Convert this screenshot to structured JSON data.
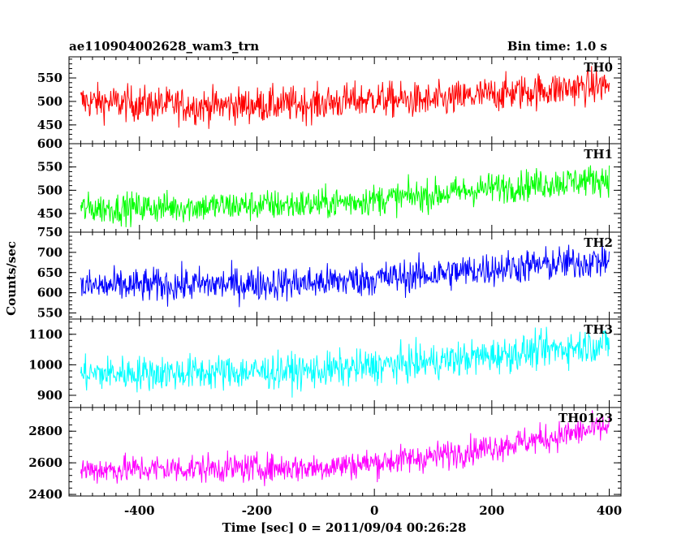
{
  "header": {
    "title": "ae110904002628_wam3_trn",
    "bin_time": "Bin time: 1.0 s"
  },
  "chart_data": {
    "type": "line",
    "title": "ae110904002628_wam3_trn",
    "xlabel": "Time [sec] 0 = 2011/09/04 00:26:28",
    "ylabel": "Counts/sec",
    "xlim": [
      -520,
      420
    ],
    "data_range": [
      -500,
      400
    ],
    "x_ticks": [
      -400,
      -200,
      0,
      200,
      400
    ],
    "grid": false,
    "panels": [
      {
        "name": "TH0",
        "color": "#ff0000",
        "ylim": [
          410,
          595
        ],
        "yticks": [
          450,
          500,
          550
        ],
        "trend": [
          [
            -500,
            500
          ],
          [
            -300,
            490
          ],
          [
            -100,
            495
          ],
          [
            0,
            505
          ],
          [
            100,
            500
          ],
          [
            200,
            515
          ],
          [
            300,
            525
          ],
          [
            400,
            535
          ]
        ],
        "noise": 25
      },
      {
        "name": "TH1",
        "color": "#00ff00",
        "ylim": [
          410,
          600
        ],
        "yticks": [
          450,
          500,
          550,
          600
        ],
        "trend": [
          [
            -500,
            460
          ],
          [
            -300,
            465
          ],
          [
            -100,
            470
          ],
          [
            0,
            480
          ],
          [
            100,
            490
          ],
          [
            200,
            505
          ],
          [
            300,
            515
          ],
          [
            400,
            525
          ]
        ],
        "noise": 22
      },
      {
        "name": "TH2",
        "color": "#0000ff",
        "ylim": [
          535,
          750
        ],
        "yticks": [
          550,
          600,
          650,
          700,
          750
        ],
        "trend": [
          [
            -500,
            615
          ],
          [
            -300,
            620
          ],
          [
            -100,
            625
          ],
          [
            0,
            635
          ],
          [
            100,
            645
          ],
          [
            200,
            660
          ],
          [
            300,
            670
          ],
          [
            400,
            680
          ]
        ],
        "noise": 28
      },
      {
        "name": "TH3",
        "color": "#00ffff",
        "ylim": [
          860,
          1150
        ],
        "yticks": [
          900,
          1000,
          1100
        ],
        "trend": [
          [
            -500,
            970
          ],
          [
            -300,
            975
          ],
          [
            -100,
            980
          ],
          [
            0,
            995
          ],
          [
            100,
            1010
          ],
          [
            200,
            1030
          ],
          [
            300,
            1050
          ],
          [
            400,
            1070
          ]
        ],
        "noise": 38
      },
      {
        "name": "TH0123",
        "color": "#ff00ff",
        "ylim": [
          2390,
          2950
        ],
        "yticks": [
          2400,
          2600,
          2800
        ],
        "trend": [
          [
            -500,
            2555
          ],
          [
            -300,
            2565
          ],
          [
            -100,
            2570
          ],
          [
            0,
            2600
          ],
          [
            100,
            2640
          ],
          [
            200,
            2700
          ],
          [
            300,
            2760
          ],
          [
            400,
            2830
          ]
        ],
        "noise": 60
      }
    ]
  }
}
